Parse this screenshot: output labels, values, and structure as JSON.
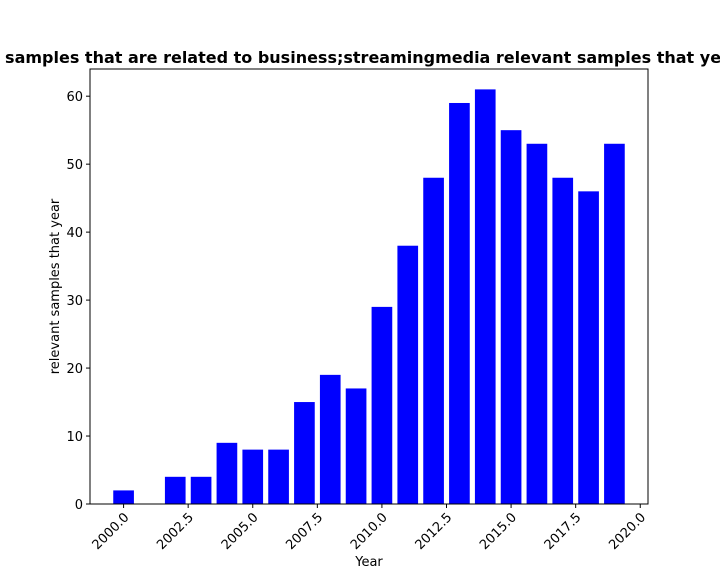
{
  "chart_data": {
    "type": "bar",
    "title": "Number of samples that are related to business;streamingmedia relevant samples that year in privacy",
    "xlabel": "Year",
    "ylabel": "relevant samples that year",
    "bar_color": "#0000ff",
    "xlim": [
      1998.7,
      2020.3
    ],
    "ylim": [
      0,
      64
    ],
    "x_ticks": [
      "2000.0",
      "2002.5",
      "2005.0",
      "2007.5",
      "2010.0",
      "2012.5",
      "2015.0",
      "2017.5",
      "2020.0"
    ],
    "y_ticks": [
      "0",
      "10",
      "20",
      "30",
      "40",
      "50",
      "60"
    ],
    "x": [
      2000,
      2002,
      2003,
      2004,
      2005,
      2006,
      2007,
      2008,
      2009,
      2010,
      2011,
      2012,
      2013,
      2014,
      2015,
      2016,
      2017,
      2018,
      2019
    ],
    "values": [
      2,
      4,
      4,
      9,
      8,
      8,
      15,
      19,
      17,
      29,
      38,
      48,
      59,
      61,
      55,
      53,
      48,
      46,
      53
    ],
    "grid": false
  }
}
